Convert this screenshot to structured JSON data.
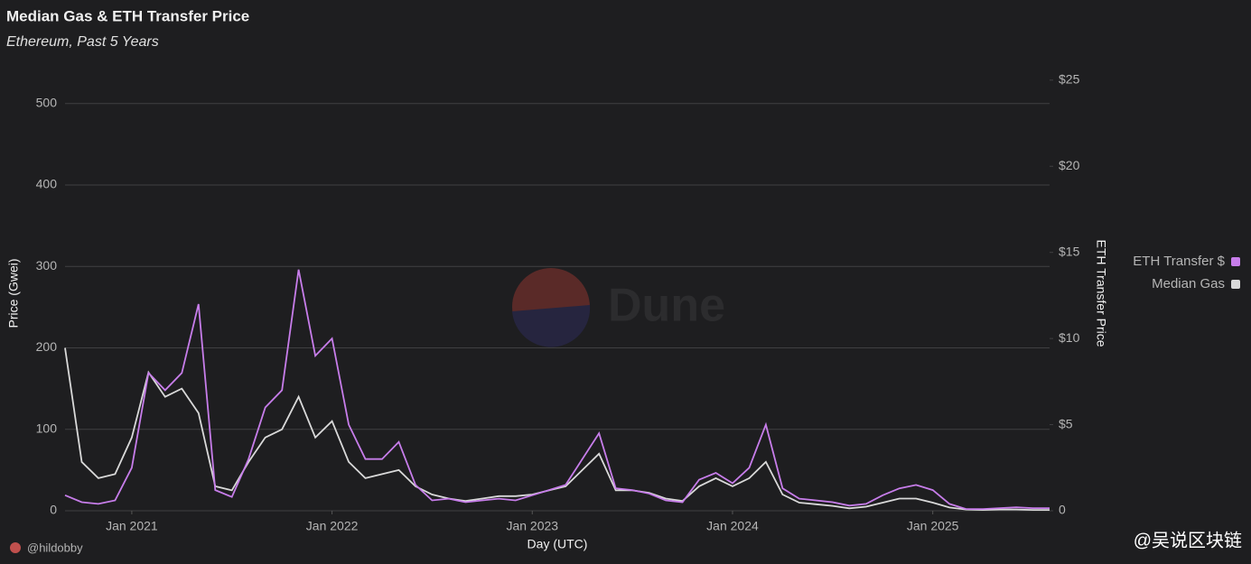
{
  "chart_data": {
    "type": "line",
    "title": "Median Gas & ETH Transfer Price",
    "subtitle": "Ethereum, Past 5 Years",
    "x_label": "Day (UTC)",
    "y_label": "Price (Gwei)",
    "y2_label": "ETH Transfer Price",
    "watermark": "Dune",
    "attribution": "@hildobby",
    "source_watermark": "@吴说区块链",
    "legend": "right",
    "grid": true,
    "x": [
      "2020-09",
      "2020-10",
      "2020-11",
      "2020-12",
      "2021-01",
      "2021-02",
      "2021-03",
      "2021-04",
      "2021-05",
      "2021-06",
      "2021-07",
      "2021-08",
      "2021-09",
      "2021-10",
      "2021-11",
      "2021-12",
      "2022-01",
      "2022-02",
      "2022-03",
      "2022-04",
      "2022-05",
      "2022-06",
      "2022-07",
      "2022-08",
      "2022-09",
      "2022-10",
      "2022-11",
      "2022-12",
      "2023-01",
      "2023-02",
      "2023-03",
      "2023-04",
      "2023-05",
      "2023-06",
      "2023-07",
      "2023-08",
      "2023-09",
      "2023-10",
      "2023-11",
      "2023-12",
      "2024-01",
      "2024-02",
      "2024-03",
      "2024-04",
      "2024-05",
      "2024-06",
      "2024-07",
      "2024-08",
      "2024-09",
      "2024-10",
      "2024-11",
      "2024-12",
      "2025-01",
      "2025-02",
      "2025-03",
      "2025-04",
      "2025-05",
      "2025-06",
      "2025-07",
      "2025-08"
    ],
    "xticks": [
      {
        "value": "2021-01",
        "label": "Jan 2021"
      },
      {
        "value": "2022-01",
        "label": "Jan 2022"
      },
      {
        "value": "2023-01",
        "label": "Jan 2023"
      },
      {
        "value": "2024-01",
        "label": "Jan 2024"
      },
      {
        "value": "2025-01",
        "label": "Jan 2025"
      }
    ],
    "ylim": [
      0,
      533
    ],
    "yticks": [
      0,
      100,
      200,
      300,
      400,
      500
    ],
    "y2lim": [
      0,
      25.2
    ],
    "y2ticks": [
      {
        "value": 0,
        "label": "0"
      },
      {
        "value": 5,
        "label": "$5"
      },
      {
        "value": 10,
        "label": "$10"
      },
      {
        "value": 15,
        "label": "$15"
      },
      {
        "value": 20,
        "label": "$20"
      },
      {
        "value": 25,
        "label": "$25"
      }
    ],
    "series": [
      {
        "name": "ETH Transfer $",
        "color": "#c77dea",
        "axis": "y2",
        "values": [
          0.9,
          0.5,
          0.4,
          0.6,
          2.5,
          8,
          7,
          8,
          12,
          1.2,
          0.8,
          3,
          6,
          7,
          14,
          9,
          10,
          5,
          3,
          3,
          4,
          1.5,
          0.6,
          0.7,
          0.5,
          0.6,
          0.7,
          0.6,
          0.9,
          1.2,
          1.5,
          3,
          4.5,
          1.3,
          1.2,
          1,
          0.6,
          0.5,
          1.8,
          2.2,
          1.6,
          2.5,
          5,
          1.3,
          0.7,
          0.6,
          0.5,
          0.3,
          0.4,
          0.9,
          1.3,
          1.5,
          1.2,
          0.4,
          0.1,
          0.1,
          0.15,
          0.2,
          0.15,
          0.15
        ]
      },
      {
        "name": "Median Gas",
        "color": "#d9d9d9",
        "values": [
          200,
          60,
          40,
          45,
          90,
          170,
          140,
          150,
          120,
          30,
          25,
          60,
          90,
          100,
          140,
          90,
          110,
          60,
          40,
          45,
          50,
          30,
          20,
          15,
          12,
          15,
          18,
          18,
          20,
          25,
          30,
          50,
          70,
          25,
          25,
          22,
          15,
          12,
          30,
          40,
          30,
          40,
          60,
          20,
          10,
          8,
          6,
          3,
          5,
          10,
          15,
          15,
          10,
          4,
          1.5,
          1,
          1.5,
          1.5,
          1,
          1
        ]
      }
    ]
  }
}
